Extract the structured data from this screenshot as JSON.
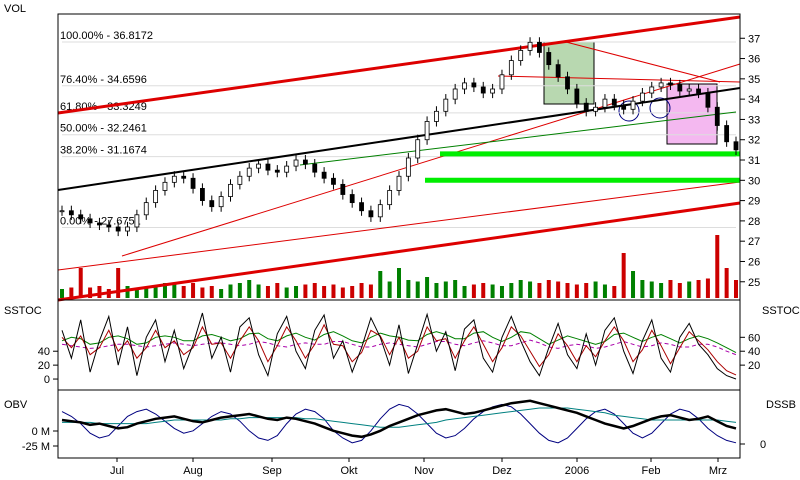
{
  "chart_data": {
    "type": "line",
    "colors": {
      "price": "#000000",
      "candle_up": "#ffffff",
      "volume_up": "#008000",
      "volume_down": "#cc0000",
      "channel": "#dd0000",
      "trend": "#000000",
      "support": "#00ee00",
      "sstoc_fast": "#000000",
      "sstoc_slow": "#aa0000",
      "sstoc_smooth": "#008000",
      "sstoc_signal": "#aa00aa",
      "obv": "#000000",
      "obv_avg": "#008080",
      "dssb": "#000080"
    },
    "x_labels": [
      "Jul",
      "Aug",
      "Sep",
      "Okt",
      "Nov",
      "Dez",
      "2006",
      "Feb",
      "Mrz"
    ],
    "price_panel": {
      "left_label": "VOL",
      "y_ticks": [
        37,
        36,
        35,
        34,
        33,
        32,
        31,
        30,
        29,
        28,
        27,
        26,
        25
      ],
      "ylim": [
        24.2,
        37.9
      ],
      "fib_levels": [
        {
          "label": "100.00% - 36.8172",
          "value": 36.8172
        },
        {
          "label": "76.40% - 34.6596",
          "value": 34.6596
        },
        {
          "label": "61.80% - 33.3249",
          "value": 33.3249
        },
        {
          "label": "50.00% - 32.2461",
          "value": 32.2461
        },
        {
          "label": "38.20% - 31.1674",
          "value": 31.1674
        },
        {
          "label": "0.00% - 27.6751",
          "value": 27.6751
        }
      ],
      "support_lines": [
        31.3,
        30.0
      ],
      "price_x": [
        0,
        5,
        10,
        15,
        20,
        25,
        30,
        35,
        40,
        45,
        50,
        55,
        60,
        65,
        70,
        75,
        80,
        85,
        90,
        95,
        100,
        105,
        110,
        115,
        120,
        125,
        130,
        135,
        140,
        145,
        150,
        155,
        160,
        165,
        170,
        175,
        180,
        185,
        190,
        195,
        200,
        205,
        210,
        215,
        220,
        225,
        230,
        235,
        240,
        245,
        250,
        255,
        260,
        265,
        270,
        275,
        280,
        285,
        290,
        295,
        300,
        305,
        310,
        315,
        320,
        325,
        330,
        335,
        340,
        345,
        350,
        355,
        360
      ],
      "price_close": [
        28.5,
        28.3,
        28.1,
        27.9,
        27.8,
        27.7,
        27.5,
        27.7,
        28.3,
        28.9,
        29.5,
        29.9,
        30.2,
        30.1,
        29.6,
        29.0,
        28.7,
        29.2,
        29.8,
        30.2,
        30.6,
        30.8,
        30.5,
        30.4,
        30.7,
        31.0,
        30.8,
        30.4,
        30.1,
        29.8,
        29.3,
        28.9,
        28.5,
        28.2,
        28.8,
        29.5,
        30.2,
        31.1,
        32.0,
        32.9,
        33.4,
        34.0,
        34.5,
        34.8,
        34.6,
        34.3,
        34.5,
        35.2,
        35.9,
        36.4,
        36.8,
        36.3,
        35.7,
        35.1,
        34.5,
        33.8,
        33.4,
        33.6,
        34.0,
        33.7,
        33.5,
        33.9,
        34.3,
        34.6,
        34.8,
        34.7,
        34.4,
        34.5,
        34.3,
        33.6,
        32.7,
        31.9,
        31.5
      ],
      "volume": [
        0.3,
        0.35,
        1.0,
        0.35,
        0.4,
        0.3,
        1.0,
        0.4,
        0.3,
        0.35,
        0.4,
        0.5,
        0.45,
        0.4,
        0.5,
        0.35,
        0.4,
        0.3,
        0.45,
        0.5,
        0.6,
        0.45,
        0.4,
        0.5,
        0.35,
        0.4,
        0.45,
        0.5,
        0.4,
        0.45,
        0.35,
        0.4,
        0.5,
        0.45,
        0.9,
        0.55,
        1.0,
        0.6,
        0.55,
        0.7,
        0.5,
        0.55,
        0.6,
        0.4,
        0.45,
        0.5,
        0.45,
        0.4,
        0.5,
        0.6,
        0.55,
        0.5,
        0.6,
        0.55,
        0.5,
        0.45,
        0.5,
        0.55,
        0.45,
        0.4,
        1.5,
        0.9,
        0.6,
        0.55,
        0.5,
        0.6,
        0.5,
        0.55,
        0.6,
        0.65,
        2.1,
        1.0,
        0.6
      ]
    },
    "sstoc_panel": {
      "left_label": "SSTOC",
      "right_label": "SSTOC",
      "left_ticks": [
        40,
        20,
        0
      ],
      "right_ticks": [
        60,
        40,
        20
      ],
      "ylim": [
        -10,
        105
      ],
      "fast": [
        70,
        30,
        85,
        10,
        55,
        90,
        20,
        75,
        5,
        60,
        85,
        25,
        70,
        15,
        50,
        95,
        30,
        60,
        10,
        75,
        88,
        35,
        5,
        65,
        90,
        40,
        15,
        70,
        92,
        30,
        55,
        10,
        45,
        88,
        60,
        20,
        78,
        8,
        50,
        93,
        40,
        68,
        12,
        72,
        85,
        30,
        10,
        60,
        90,
        55,
        25,
        5,
        45,
        80,
        35,
        15,
        65,
        20,
        70,
        88,
        40,
        8,
        55,
        85,
        30,
        10,
        60,
        80,
        50,
        35,
        15,
        5,
        0
      ],
      "slow": [
        60,
        45,
        62,
        35,
        45,
        70,
        40,
        55,
        30,
        45,
        70,
        45,
        55,
        35,
        45,
        75,
        50,
        52,
        30,
        55,
        75,
        55,
        25,
        48,
        75,
        55,
        30,
        50,
        78,
        50,
        48,
        25,
        38,
        70,
        62,
        35,
        60,
        30,
        40,
        75,
        55,
        58,
        30,
        55,
        75,
        50,
        25,
        45,
        75,
        62,
        40,
        18,
        35,
        65,
        48,
        25,
        48,
        32,
        55,
        75,
        55,
        25,
        42,
        70,
        48,
        22,
        45,
        68,
        55,
        42,
        25,
        12,
        6
      ],
      "smooth": [
        55,
        60,
        58,
        50,
        52,
        60,
        62,
        58,
        50,
        52,
        60,
        62,
        60,
        55,
        55,
        62,
        64,
        60,
        55,
        58,
        65,
        66,
        58,
        55,
        62,
        66,
        60,
        56,
        64,
        68,
        62,
        55,
        52,
        60,
        66,
        62,
        60,
        56,
        55,
        64,
        68,
        64,
        58,
        58,
        66,
        68,
        60,
        54,
        60,
        68,
        66,
        58,
        50,
        56,
        62,
        58,
        54,
        50,
        54,
        64,
        66,
        60,
        54,
        60,
        64,
        58,
        52,
        58,
        62,
        58,
        52,
        45,
        38
      ],
      "signal": [
        50,
        48,
        46,
        44,
        45,
        48,
        50,
        50,
        48,
        46,
        48,
        50,
        52,
        50,
        48,
        50,
        52,
        52,
        50,
        48,
        50,
        54,
        52,
        48,
        46,
        50,
        52,
        50,
        50,
        54,
        54,
        50,
        46,
        46,
        50,
        52,
        50,
        48,
        46,
        50,
        54,
        54,
        50,
        48,
        52,
        55,
        52,
        48,
        48,
        52,
        56,
        52,
        46,
        44,
        48,
        50,
        48,
        44,
        46,
        50,
        54,
        50,
        46,
        48,
        52,
        50,
        46,
        46,
        50,
        50,
        46,
        40,
        35
      ]
    },
    "obv_panel": {
      "left_label": "OBV",
      "right_label": "DSSB",
      "left_ticks": [
        "0 M",
        "-25 M"
      ],
      "right_ticks": [
        "0"
      ],
      "obv": [
        5,
        4,
        3,
        1,
        2,
        0,
        -2,
        -1,
        2,
        4,
        6,
        7,
        8,
        6,
        4,
        3,
        5,
        7,
        8,
        9,
        10,
        8,
        6,
        5,
        7,
        6,
        4,
        2,
        -1,
        -4,
        -6,
        -8,
        -9,
        -7,
        -4,
        0,
        3,
        6,
        9,
        11,
        13,
        14,
        12,
        10,
        11,
        13,
        15,
        17,
        19,
        20,
        21,
        19,
        17,
        15,
        13,
        11,
        8,
        5,
        2,
        0,
        -2,
        0,
        3,
        6,
        8,
        9,
        7,
        5,
        6,
        8,
        4,
        0,
        -2
      ],
      "obv_avg": [
        3,
        3,
        3,
        3,
        2,
        2,
        2,
        2,
        2,
        2,
        3,
        4,
        5,
        5,
        5,
        5,
        5,
        5,
        6,
        6,
        7,
        7,
        7,
        7,
        7,
        7,
        6,
        6,
        5,
        4,
        3,
        2,
        1,
        0,
        -1,
        -1,
        -1,
        0,
        1,
        2,
        3,
        5,
        6,
        7,
        8,
        9,
        10,
        11,
        12,
        13,
        14,
        15,
        15,
        15,
        15,
        14,
        13,
        12,
        11,
        9,
        8,
        7,
        6,
        5,
        5,
        5,
        5,
        5,
        5,
        5,
        5,
        4,
        3
      ],
      "dssb": [
        12,
        8,
        2,
        -6,
        -10,
        -8,
        0,
        8,
        12,
        14,
        10,
        4,
        -2,
        -6,
        -4,
        2,
        8,
        12,
        10,
        4,
        -4,
        -10,
        -12,
        -8,
        2,
        10,
        14,
        12,
        6,
        -4,
        -10,
        -14,
        -12,
        -4,
        6,
        14,
        18,
        16,
        10,
        2,
        -6,
        -10,
        -8,
        -2,
        6,
        12,
        16,
        18,
        16,
        10,
        2,
        -6,
        -12,
        -14,
        -10,
        -2,
        6,
        12,
        14,
        10,
        2,
        -6,
        -10,
        -6,
        2,
        10,
        14,
        12,
        6,
        -2,
        -8,
        -12,
        -14
      ]
    }
  }
}
